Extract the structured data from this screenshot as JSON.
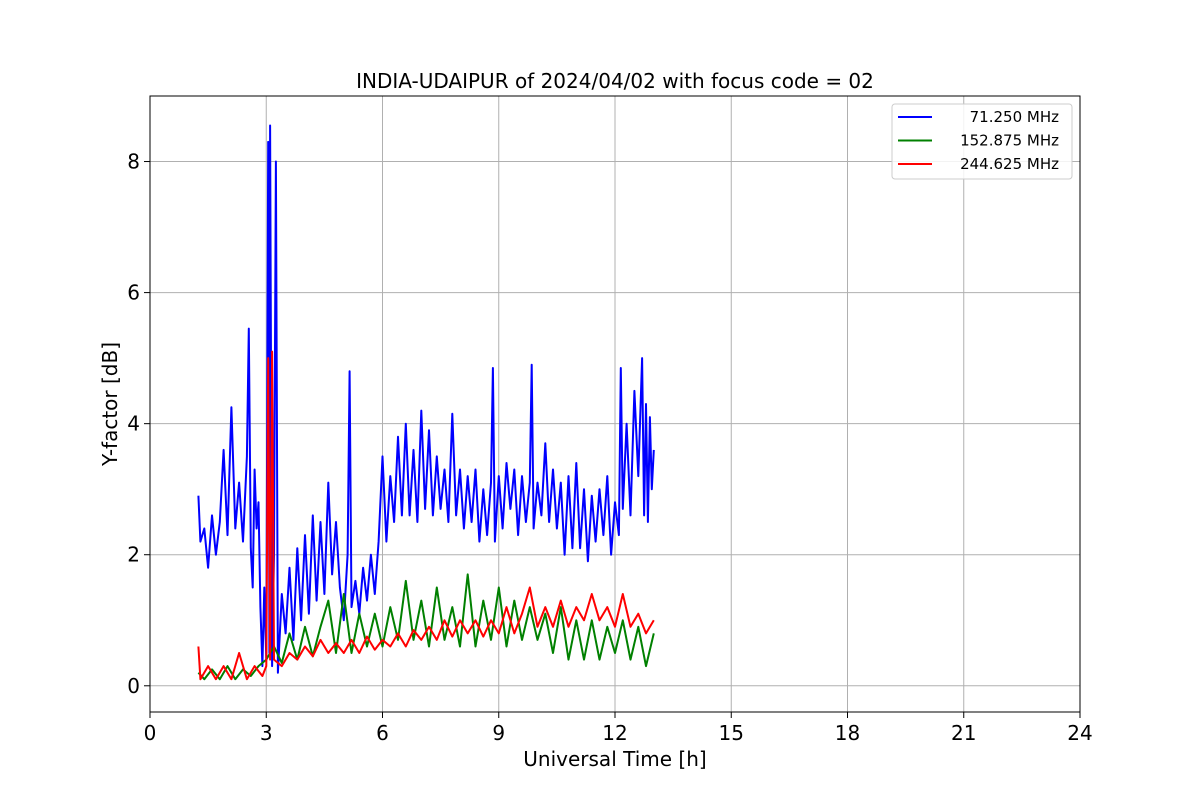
{
  "chart_data": {
    "type": "line",
    "title": "INDIA-UDAIPUR of 2024/04/02 with focus code = 02",
    "xlabel": "Universal Time [h]",
    "ylabel": "Y-factor [dB]",
    "xlim": [
      0,
      24
    ],
    "ylim": [
      -0.4,
      9.0
    ],
    "xticks": [
      0,
      3,
      6,
      9,
      12,
      15,
      18,
      21,
      24
    ],
    "yticks": [
      0,
      2,
      4,
      6,
      8
    ],
    "grid": true,
    "legend_position": "upper-right",
    "series": [
      {
        "name": "71.250 MHz",
        "color": "#0000ff",
        "points": [
          [
            1.25,
            2.9
          ],
          [
            1.3,
            2.2
          ],
          [
            1.4,
            2.4
          ],
          [
            1.5,
            1.8
          ],
          [
            1.6,
            2.6
          ],
          [
            1.7,
            2.0
          ],
          [
            1.8,
            2.5
          ],
          [
            1.9,
            3.6
          ],
          [
            2.0,
            2.3
          ],
          [
            2.1,
            4.25
          ],
          [
            2.2,
            2.4
          ],
          [
            2.3,
            3.1
          ],
          [
            2.4,
            2.2
          ],
          [
            2.5,
            3.5
          ],
          [
            2.55,
            5.45
          ],
          [
            2.6,
            2.1
          ],
          [
            2.65,
            1.5
          ],
          [
            2.7,
            3.3
          ],
          [
            2.75,
            2.4
          ],
          [
            2.8,
            2.8
          ],
          [
            2.85,
            1.2
          ],
          [
            2.9,
            0.3
          ],
          [
            2.95,
            1.5
          ],
          [
            3.0,
            0.4
          ],
          [
            3.05,
            8.3
          ],
          [
            3.08,
            0.5
          ],
          [
            3.1,
            8.55
          ],
          [
            3.15,
            0.3
          ],
          [
            3.2,
            2.0
          ],
          [
            3.25,
            8.0
          ],
          [
            3.3,
            0.2
          ],
          [
            3.4,
            1.4
          ],
          [
            3.5,
            0.8
          ],
          [
            3.6,
            1.8
          ],
          [
            3.7,
            0.7
          ],
          [
            3.8,
            2.1
          ],
          [
            3.9,
            1.0
          ],
          [
            4.0,
            2.3
          ],
          [
            4.1,
            1.1
          ],
          [
            4.2,
            2.6
          ],
          [
            4.3,
            1.3
          ],
          [
            4.4,
            2.5
          ],
          [
            4.5,
            1.4
          ],
          [
            4.6,
            3.1
          ],
          [
            4.7,
            1.7
          ],
          [
            4.8,
            2.5
          ],
          [
            4.9,
            1.5
          ],
          [
            5.0,
            1.0
          ],
          [
            5.1,
            2.0
          ],
          [
            5.15,
            4.8
          ],
          [
            5.2,
            1.2
          ],
          [
            5.3,
            1.6
          ],
          [
            5.4,
            1.1
          ],
          [
            5.5,
            1.8
          ],
          [
            5.6,
            1.3
          ],
          [
            5.7,
            2.0
          ],
          [
            5.8,
            1.4
          ],
          [
            5.9,
            2.2
          ],
          [
            6.0,
            3.5
          ],
          [
            6.1,
            2.2
          ],
          [
            6.2,
            3.2
          ],
          [
            6.3,
            2.5
          ],
          [
            6.4,
            3.8
          ],
          [
            6.5,
            2.6
          ],
          [
            6.6,
            4.0
          ],
          [
            6.7,
            2.6
          ],
          [
            6.8,
            3.6
          ],
          [
            6.9,
            2.5
          ],
          [
            7.0,
            4.2
          ],
          [
            7.1,
            2.7
          ],
          [
            7.2,
            3.9
          ],
          [
            7.3,
            2.6
          ],
          [
            7.4,
            3.5
          ],
          [
            7.5,
            2.7
          ],
          [
            7.6,
            3.3
          ],
          [
            7.7,
            2.5
          ],
          [
            7.8,
            4.15
          ],
          [
            7.9,
            2.6
          ],
          [
            8.0,
            3.3
          ],
          [
            8.1,
            2.4
          ],
          [
            8.2,
            3.2
          ],
          [
            8.3,
            2.5
          ],
          [
            8.4,
            3.3
          ],
          [
            8.5,
            2.2
          ],
          [
            8.6,
            3.0
          ],
          [
            8.7,
            2.3
          ],
          [
            8.8,
            3.1
          ],
          [
            8.85,
            4.85
          ],
          [
            8.9,
            2.2
          ],
          [
            9.0,
            3.2
          ],
          [
            9.1,
            2.4
          ],
          [
            9.2,
            3.4
          ],
          [
            9.3,
            2.7
          ],
          [
            9.4,
            3.3
          ],
          [
            9.5,
            2.3
          ],
          [
            9.6,
            3.2
          ],
          [
            9.7,
            2.5
          ],
          [
            9.8,
            3.1
          ],
          [
            9.85,
            4.9
          ],
          [
            9.9,
            2.4
          ],
          [
            10.0,
            3.1
          ],
          [
            10.1,
            2.6
          ],
          [
            10.2,
            3.7
          ],
          [
            10.3,
            2.5
          ],
          [
            10.4,
            3.3
          ],
          [
            10.5,
            2.4
          ],
          [
            10.6,
            3.1
          ],
          [
            10.7,
            2.0
          ],
          [
            10.8,
            3.2
          ],
          [
            10.9,
            2.1
          ],
          [
            11.0,
            3.4
          ],
          [
            11.1,
            2.1
          ],
          [
            11.2,
            3.0
          ],
          [
            11.3,
            1.9
          ],
          [
            11.4,
            2.9
          ],
          [
            11.5,
            2.2
          ],
          [
            11.6,
            3.0
          ],
          [
            11.7,
            2.3
          ],
          [
            11.8,
            3.2
          ],
          [
            11.9,
            2.0
          ],
          [
            12.0,
            2.8
          ],
          [
            12.1,
            2.3
          ],
          [
            12.15,
            4.85
          ],
          [
            12.2,
            2.7
          ],
          [
            12.3,
            4.0
          ],
          [
            12.4,
            2.6
          ],
          [
            12.5,
            4.5
          ],
          [
            12.6,
            3.2
          ],
          [
            12.7,
            5.0
          ],
          [
            12.75,
            2.6
          ],
          [
            12.8,
            4.3
          ],
          [
            12.85,
            2.5
          ],
          [
            12.9,
            4.1
          ],
          [
            12.95,
            3.0
          ],
          [
            13.0,
            3.6
          ]
        ]
      },
      {
        "name": "152.875 MHz",
        "color": "#008000",
        "points": [
          [
            1.25,
            0.2
          ],
          [
            1.4,
            0.1
          ],
          [
            1.6,
            0.25
          ],
          [
            1.8,
            0.1
          ],
          [
            2.0,
            0.3
          ],
          [
            2.2,
            0.1
          ],
          [
            2.4,
            0.25
          ],
          [
            2.6,
            0.15
          ],
          [
            2.8,
            0.3
          ],
          [
            3.0,
            0.4
          ],
          [
            3.2,
            0.6
          ],
          [
            3.4,
            0.35
          ],
          [
            3.6,
            0.8
          ],
          [
            3.8,
            0.4
          ],
          [
            4.0,
            0.9
          ],
          [
            4.2,
            0.45
          ],
          [
            4.4,
            0.9
          ],
          [
            4.6,
            1.3
          ],
          [
            4.8,
            0.5
          ],
          [
            5.0,
            1.4
          ],
          [
            5.2,
            0.5
          ],
          [
            5.4,
            1.1
          ],
          [
            5.6,
            0.6
          ],
          [
            5.8,
            1.1
          ],
          [
            6.0,
            0.6
          ],
          [
            6.2,
            1.2
          ],
          [
            6.4,
            0.7
          ],
          [
            6.6,
            1.6
          ],
          [
            6.8,
            0.7
          ],
          [
            7.0,
            1.3
          ],
          [
            7.2,
            0.6
          ],
          [
            7.4,
            1.5
          ],
          [
            7.6,
            0.7
          ],
          [
            7.8,
            1.2
          ],
          [
            8.0,
            0.6
          ],
          [
            8.2,
            1.7
          ],
          [
            8.4,
            0.6
          ],
          [
            8.6,
            1.3
          ],
          [
            8.8,
            0.7
          ],
          [
            9.0,
            1.5
          ],
          [
            9.2,
            0.6
          ],
          [
            9.4,
            1.3
          ],
          [
            9.6,
            0.7
          ],
          [
            9.8,
            1.2
          ],
          [
            10.0,
            0.7
          ],
          [
            10.2,
            1.1
          ],
          [
            10.4,
            0.5
          ],
          [
            10.6,
            1.2
          ],
          [
            10.8,
            0.4
          ],
          [
            11.0,
            1.0
          ],
          [
            11.2,
            0.4
          ],
          [
            11.4,
            1.0
          ],
          [
            11.6,
            0.4
          ],
          [
            11.8,
            0.9
          ],
          [
            12.0,
            0.5
          ],
          [
            12.2,
            1.0
          ],
          [
            12.4,
            0.4
          ],
          [
            12.6,
            0.9
          ],
          [
            12.8,
            0.3
          ],
          [
            13.0,
            0.8
          ]
        ]
      },
      {
        "name": "244.625 MHz",
        "color": "#ff0000",
        "points": [
          [
            1.25,
            0.6
          ],
          [
            1.3,
            0.1
          ],
          [
            1.5,
            0.3
          ],
          [
            1.7,
            0.1
          ],
          [
            1.9,
            0.3
          ],
          [
            2.1,
            0.1
          ],
          [
            2.3,
            0.5
          ],
          [
            2.5,
            0.1
          ],
          [
            2.7,
            0.3
          ],
          [
            2.9,
            0.15
          ],
          [
            3.0,
            0.3
          ],
          [
            3.05,
            5.0
          ],
          [
            3.1,
            0.4
          ],
          [
            3.15,
            5.1
          ],
          [
            3.2,
            0.4
          ],
          [
            3.4,
            0.3
          ],
          [
            3.6,
            0.5
          ],
          [
            3.8,
            0.4
          ],
          [
            4.0,
            0.6
          ],
          [
            4.2,
            0.45
          ],
          [
            4.4,
            0.7
          ],
          [
            4.6,
            0.5
          ],
          [
            4.8,
            0.65
          ],
          [
            5.0,
            0.5
          ],
          [
            5.2,
            0.7
          ],
          [
            5.4,
            0.5
          ],
          [
            5.6,
            0.75
          ],
          [
            5.8,
            0.55
          ],
          [
            6.0,
            0.7
          ],
          [
            6.2,
            0.6
          ],
          [
            6.4,
            0.8
          ],
          [
            6.6,
            0.6
          ],
          [
            6.8,
            0.85
          ],
          [
            7.0,
            0.7
          ],
          [
            7.2,
            0.9
          ],
          [
            7.4,
            0.7
          ],
          [
            7.6,
            1.0
          ],
          [
            7.8,
            0.75
          ],
          [
            8.0,
            1.0
          ],
          [
            8.2,
            0.8
          ],
          [
            8.4,
            1.0
          ],
          [
            8.6,
            0.75
          ],
          [
            8.8,
            1.0
          ],
          [
            9.0,
            0.8
          ],
          [
            9.2,
            1.2
          ],
          [
            9.4,
            0.8
          ],
          [
            9.6,
            1.1
          ],
          [
            9.8,
            1.5
          ],
          [
            10.0,
            0.9
          ],
          [
            10.2,
            1.2
          ],
          [
            10.4,
            0.9
          ],
          [
            10.6,
            1.3
          ],
          [
            10.8,
            0.9
          ],
          [
            11.0,
            1.2
          ],
          [
            11.2,
            1.0
          ],
          [
            11.4,
            1.4
          ],
          [
            11.6,
            1.0
          ],
          [
            11.8,
            1.2
          ],
          [
            12.0,
            0.9
          ],
          [
            12.2,
            1.4
          ],
          [
            12.4,
            0.9
          ],
          [
            12.6,
            1.1
          ],
          [
            12.8,
            0.8
          ],
          [
            13.0,
            1.0
          ]
        ]
      }
    ]
  }
}
